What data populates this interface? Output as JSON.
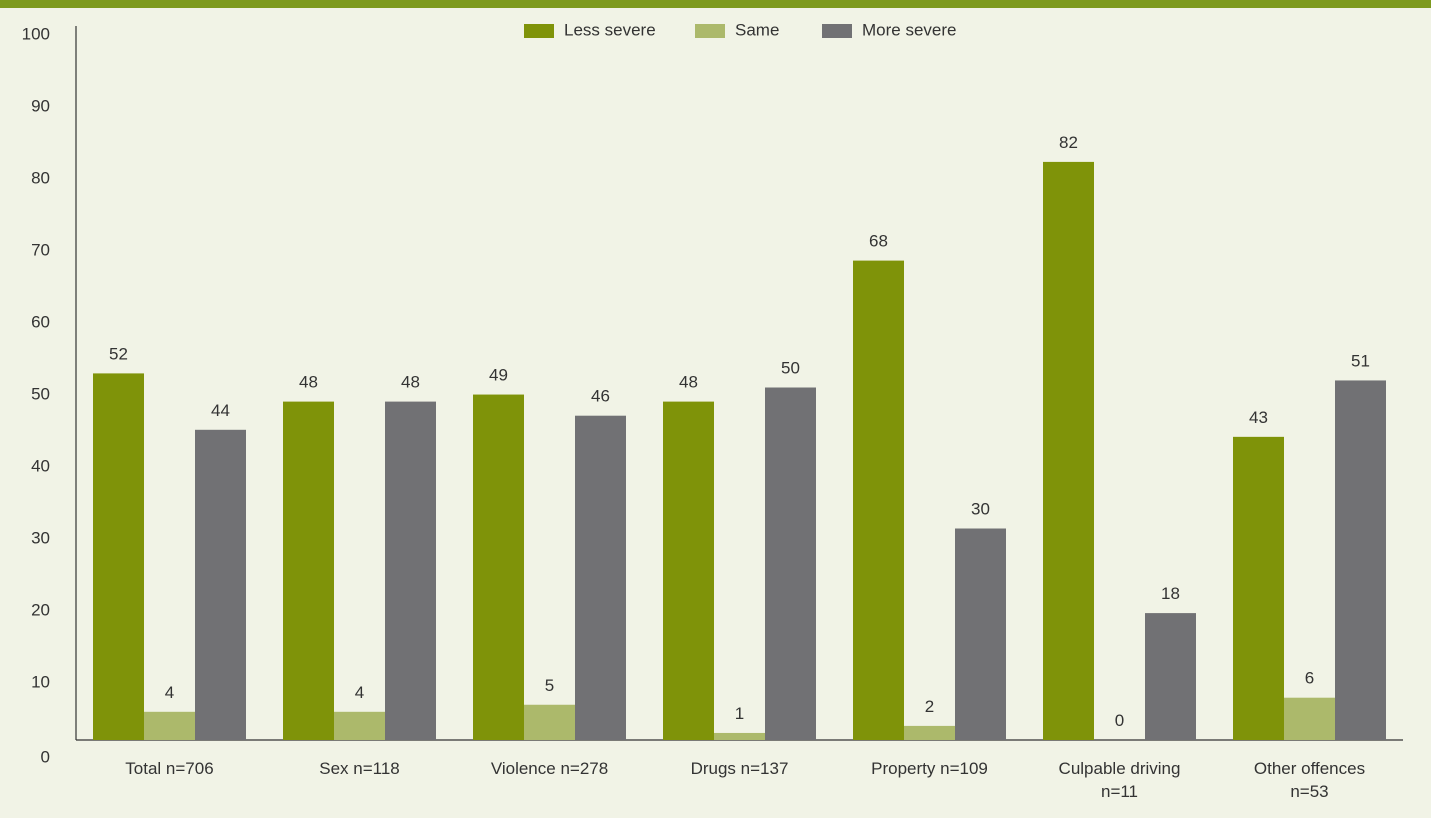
{
  "colors": {
    "page_background": "#f1f3e6",
    "header_band": "#7d9a1e",
    "axis": "#333333",
    "text": "#333333"
  },
  "chart_data": {
    "type": "bar",
    "ylim": [
      0,
      100
    ],
    "yticks": [
      0,
      10,
      20,
      30,
      40,
      50,
      60,
      70,
      80,
      90,
      100
    ],
    "grid": false,
    "legend_position": "top-center",
    "categories": [
      [
        "Total n=706"
      ],
      [
        "Sex n=118"
      ],
      [
        "Violence n=278"
      ],
      [
        "Drugs n=137"
      ],
      [
        "Property n=109"
      ],
      [
        "Culpable driving",
        "n=11"
      ],
      [
        "Other offences",
        "n=53"
      ]
    ],
    "series": [
      {
        "name": "Less severe",
        "color": "#7f9309",
        "values": [
          52,
          48,
          49,
          48,
          68,
          82,
          43
        ]
      },
      {
        "name": "Same",
        "color": "#acb96b",
        "values": [
          4,
          4,
          5,
          1,
          2,
          0,
          6
        ]
      },
      {
        "name": "More severe",
        "color": "#717174",
        "values": [
          44,
          48,
          46,
          50,
          30,
          18,
          51
        ]
      }
    ]
  }
}
